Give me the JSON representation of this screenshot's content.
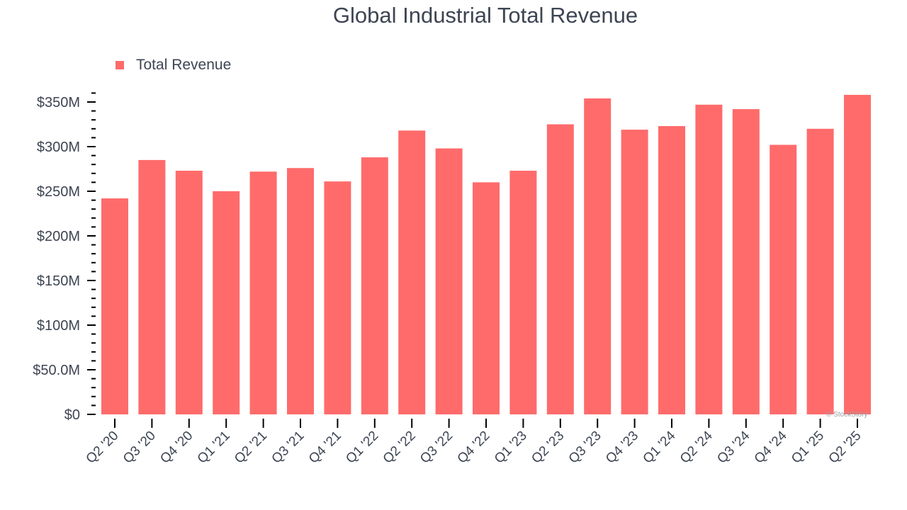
{
  "chart_data": {
    "type": "bar",
    "title": "Global Industrial Total Revenue",
    "legend": {
      "entries": [
        "Total Revenue"
      ],
      "position": "top-left"
    },
    "categories": [
      "Q2 '20",
      "Q3 '20",
      "Q4 '20",
      "Q1 '21",
      "Q2 '21",
      "Q3 '21",
      "Q4 '21",
      "Q1 '22",
      "Q2 '22",
      "Q3 '22",
      "Q4 '22",
      "Q1 '23",
      "Q2 '23",
      "Q3 '23",
      "Q4 '23",
      "Q1 '24",
      "Q2 '24",
      "Q3 '24",
      "Q4 '24",
      "Q1 '25",
      "Q2 '25"
    ],
    "series": [
      {
        "name": "Total Revenue",
        "color": "#ff6b6b",
        "values": [
          242,
          285,
          273,
          250,
          272,
          276,
          261,
          288,
          318,
          298,
          260,
          273,
          325,
          354,
          319,
          323,
          347,
          342,
          302,
          320,
          358
        ]
      }
    ],
    "unit": "$M",
    "ylim": [
      0,
      360
    ],
    "yticks": [
      0,
      50,
      100,
      150,
      200,
      250,
      300,
      350
    ],
    "ytick_labels": [
      "$0",
      "$50.0M",
      "$100M",
      "$150M",
      "$200M",
      "$250M",
      "$300M",
      "$350M"
    ],
    "grid": false,
    "watermark": "© StockStory"
  }
}
